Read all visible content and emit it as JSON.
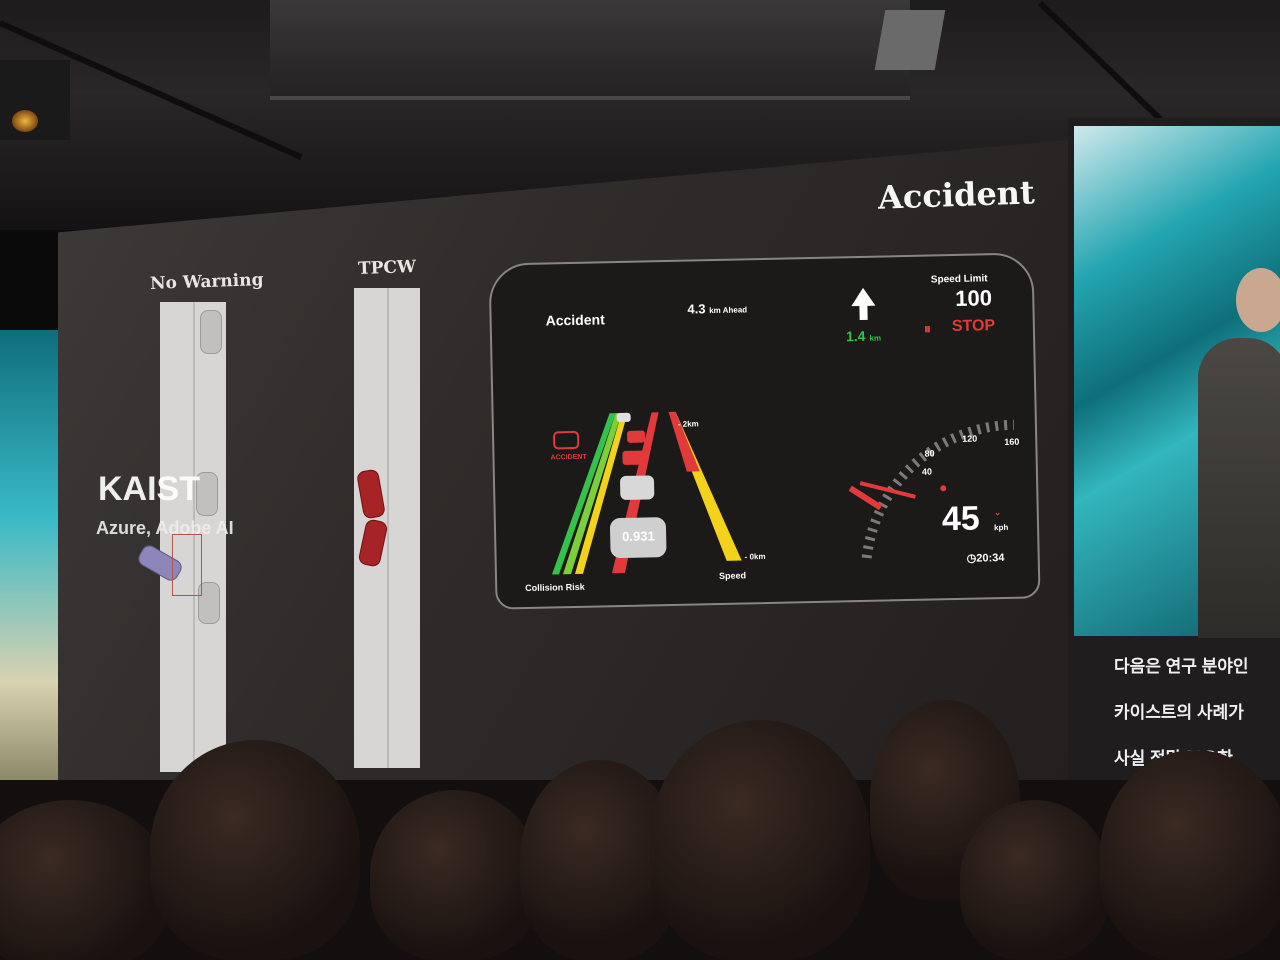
{
  "scene": "presentation stage with projected driving-safety slide",
  "slide": {
    "title": "Accident",
    "left_demo": {
      "no_warning_label": "No Warning",
      "tpcw_label": "TPCW"
    },
    "overlay": {
      "brand": "KAIST",
      "partners": "Azure, Adobe AI"
    }
  },
  "hud": {
    "event_label": "Accident",
    "distance_ahead": "4.3",
    "distance_ahead_unit": "km Ahead",
    "nav_distance": "1.4",
    "nav_distance_unit": "km",
    "speed_limit_label": "Speed Limit",
    "speed_limit_value": "100",
    "stop_label": "STOP",
    "accident_icon_label": "ACCIDENT",
    "collision_risk_label": "Collision Risk",
    "speed_bar_label": "Speed",
    "risk_value": "0.931",
    "top_distance": "- 2km",
    "bottom_distance": "- 0km",
    "speed_value": "45",
    "speed_unit": "kph",
    "clock": "20:34",
    "dial_ticks": [
      "40",
      "80",
      "120",
      "160"
    ],
    "colors": {
      "green": "#35c24a",
      "yellow": "#f2d21b",
      "red": "#e23a3a",
      "orange": "#f08a1c"
    }
  },
  "right_screen": {
    "subtitles": [
      "다음은 연구 분야인",
      "카이스트의 사례가",
      "사실 정말 중요한"
    ]
  }
}
